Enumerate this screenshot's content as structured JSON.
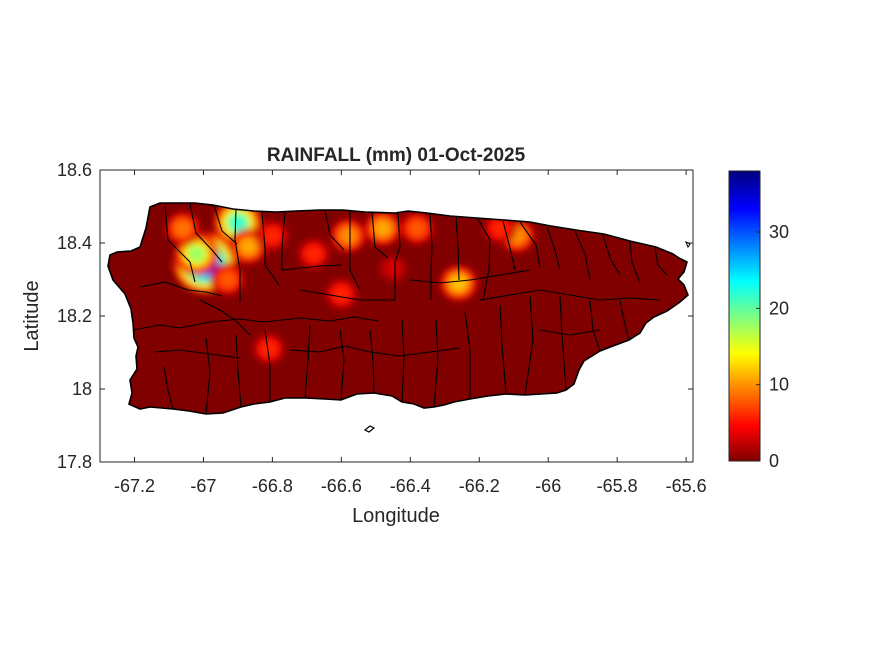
{
  "figure": {
    "title": "RAINFALL (mm) 01-Oct-2025",
    "xlabel": "Longitude",
    "ylabel": "Latitude"
  },
  "chart_data": {
    "type": "heatmap",
    "title": "RAINFALL (mm) 01-Oct-2025",
    "xlabel": "Longitude",
    "ylabel": "Latitude",
    "xlim": [
      -67.3,
      -65.58
    ],
    "ylim": [
      17.8,
      18.6
    ],
    "x_ticks": [
      -67.2,
      -67,
      -66.8,
      -66.6,
      -66.4,
      -66.2,
      -66,
      -65.8,
      -65.6
    ],
    "y_ticks": [
      17.8,
      18,
      18.2,
      18.4,
      18.6
    ],
    "x_tick_labels": [
      "-67.2",
      "-67",
      "-66.8",
      "-66.6",
      "-66.4",
      "-66.2",
      "-66",
      "-65.8",
      "-65.6"
    ],
    "y_tick_labels": [
      "17.8",
      "18",
      "18.2",
      "18.4",
      "18.6"
    ],
    "background_value": 0,
    "rain_cells": [
      {
        "lon": -66.995,
        "lat": 18.345,
        "value": 38
      },
      {
        "lon": -67.02,
        "lat": 18.37,
        "value": 18
      },
      {
        "lon": -66.9,
        "lat": 18.455,
        "value": 22
      },
      {
        "lon": -66.87,
        "lat": 18.39,
        "value": 11
      },
      {
        "lon": -66.93,
        "lat": 18.3,
        "value": 8
      },
      {
        "lon": -67.06,
        "lat": 18.44,
        "value": 9
      },
      {
        "lon": -66.8,
        "lat": 18.42,
        "value": 6
      },
      {
        "lon": -66.68,
        "lat": 18.37,
        "value": 6
      },
      {
        "lon": -66.58,
        "lat": 18.42,
        "value": 10
      },
      {
        "lon": -66.48,
        "lat": 18.44,
        "value": 11
      },
      {
        "lon": -66.38,
        "lat": 18.44,
        "value": 8
      },
      {
        "lon": -66.26,
        "lat": 18.29,
        "value": 12
      },
      {
        "lon": -66.09,
        "lat": 18.42,
        "value": 10
      },
      {
        "lon": -66.14,
        "lat": 18.44,
        "value": 6
      },
      {
        "lon": -66.6,
        "lat": 18.26,
        "value": 6
      },
      {
        "lon": -66.81,
        "lat": 18.11,
        "value": 6
      },
      {
        "lon": -66.45,
        "lat": 18.33,
        "value": 3
      }
    ],
    "colorbar": {
      "colormap": "jet_reversed",
      "min": 0,
      "max": 38,
      "ticks": [
        0,
        10,
        20,
        30
      ],
      "tick_labels": [
        "0",
        "10",
        "20",
        "30"
      ]
    },
    "colors": {
      "low": "#800000",
      "high": "#000080",
      "border": "#000000"
    }
  }
}
